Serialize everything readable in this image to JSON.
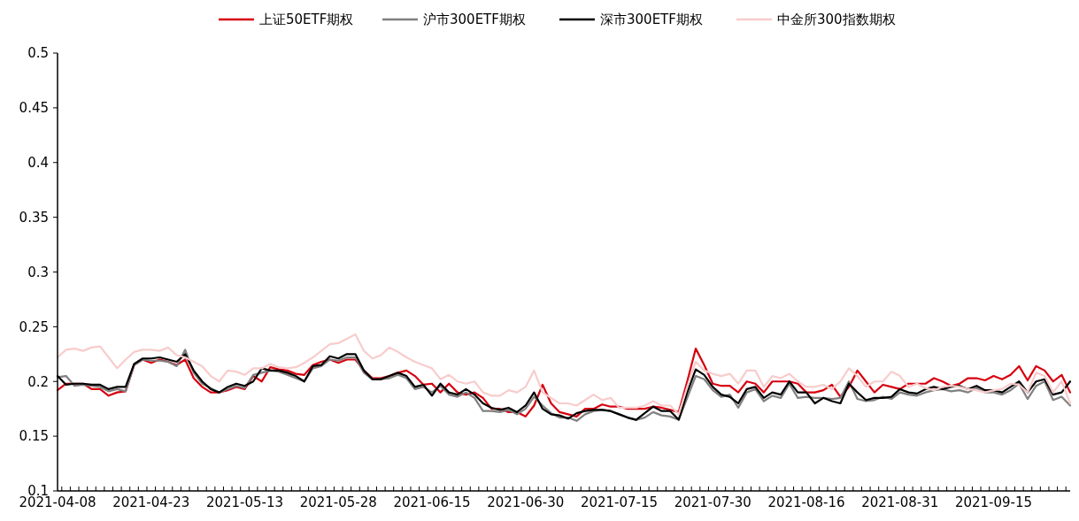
{
  "chart_data": {
    "type": "line",
    "legend": "top",
    "grid": false,
    "marker": "none",
    "line_style": "solid",
    "categories": [
      "2021-04-08",
      null,
      null,
      null,
      null,
      null,
      null,
      null,
      null,
      null,
      null,
      "2021-04-23",
      null,
      null,
      null,
      null,
      null,
      null,
      null,
      null,
      null,
      null,
      "2021-05-13",
      null,
      null,
      null,
      null,
      null,
      null,
      null,
      null,
      null,
      null,
      "2021-05-28",
      null,
      null,
      null,
      null,
      null,
      null,
      null,
      null,
      null,
      null,
      "2021-06-15",
      null,
      null,
      null,
      null,
      null,
      null,
      null,
      null,
      null,
      null,
      "2021-06-30",
      null,
      null,
      null,
      null,
      null,
      null,
      null,
      null,
      null,
      null,
      "2021-07-15",
      null,
      null,
      null,
      null,
      null,
      null,
      null,
      null,
      null,
      null,
      "2021-07-30",
      null,
      null,
      null,
      null,
      null,
      null,
      null,
      null,
      null,
      null,
      "2021-08-16",
      null,
      null,
      null,
      null,
      null,
      null,
      null,
      null,
      null,
      null,
      "2021-08-31",
      null,
      null,
      null,
      null,
      null,
      null,
      null,
      null,
      null,
      null,
      "2021-09-15",
      null,
      null,
      null,
      null,
      null,
      null,
      null,
      null,
      null
    ],
    "ylim": [
      0.1,
      0.5
    ],
    "yticks": [
      0.1,
      0.15,
      0.2,
      0.25,
      0.3,
      0.35,
      0.4,
      0.45,
      0.5
    ],
    "series": [
      {
        "name": "上证50ETF期权",
        "color": "#d7000f",
        "values": [
          0.192,
          0.198,
          0.198,
          0.198,
          0.193,
          0.193,
          0.187,
          0.19,
          0.191,
          0.215,
          0.22,
          0.217,
          0.22,
          0.218,
          0.215,
          0.22,
          0.203,
          0.195,
          0.19,
          0.19,
          0.192,
          0.195,
          0.193,
          0.205,
          0.2,
          0.213,
          0.211,
          0.21,
          0.207,
          0.206,
          0.215,
          0.218,
          0.22,
          0.217,
          0.22,
          0.22,
          0.21,
          0.203,
          0.203,
          0.205,
          0.208,
          0.21,
          0.205,
          0.197,
          0.198,
          0.19,
          0.198,
          0.19,
          0.188,
          0.19,
          0.185,
          0.175,
          0.175,
          0.172,
          0.172,
          0.168,
          0.178,
          0.197,
          0.18,
          0.172,
          0.17,
          0.168,
          0.175,
          0.175,
          0.179,
          0.177,
          0.177,
          0.175,
          0.175,
          0.175,
          0.177,
          0.176,
          0.174,
          0.172,
          0.2,
          0.23,
          0.215,
          0.198,
          0.196,
          0.196,
          0.19,
          0.2,
          0.198,
          0.19,
          0.2,
          0.2,
          0.2,
          0.198,
          0.19,
          0.19,
          0.192,
          0.197,
          0.186,
          0.195,
          0.21,
          0.2,
          0.19,
          0.197,
          0.195,
          0.193,
          0.198,
          0.198,
          0.198,
          0.203,
          0.2,
          0.196,
          0.198,
          0.203,
          0.203,
          0.201,
          0.205,
          0.202,
          0.206,
          0.214,
          0.201,
          0.214,
          0.21,
          0.2,
          0.206,
          0.19
        ]
      },
      {
        "name": "沪市300ETF期权",
        "color": "#808080",
        "values": [
          0.204,
          0.205,
          0.196,
          0.197,
          0.196,
          0.195,
          0.191,
          0.193,
          0.191,
          0.215,
          0.22,
          0.219,
          0.219,
          0.218,
          0.214,
          0.229,
          0.208,
          0.198,
          0.194,
          0.19,
          0.193,
          0.196,
          0.194,
          0.206,
          0.208,
          0.21,
          0.209,
          0.206,
          0.203,
          0.2,
          0.212,
          0.214,
          0.22,
          0.219,
          0.222,
          0.222,
          0.208,
          0.202,
          0.202,
          0.203,
          0.206,
          0.203,
          0.193,
          0.195,
          0.19,
          0.196,
          0.188,
          0.186,
          0.19,
          0.185,
          0.173,
          0.173,
          0.172,
          0.174,
          0.17,
          0.175,
          0.186,
          0.178,
          0.171,
          0.167,
          0.167,
          0.164,
          0.17,
          0.173,
          0.174,
          0.173,
          0.17,
          0.167,
          0.165,
          0.167,
          0.172,
          0.169,
          0.168,
          0.165,
          0.185,
          0.205,
          0.202,
          0.192,
          0.186,
          0.188,
          0.176,
          0.19,
          0.193,
          0.182,
          0.187,
          0.185,
          0.198,
          0.185,
          0.186,
          0.185,
          0.185,
          0.184,
          0.185,
          0.2,
          0.184,
          0.182,
          0.183,
          0.186,
          0.184,
          0.19,
          0.188,
          0.187,
          0.19,
          0.192,
          0.193,
          0.191,
          0.192,
          0.19,
          0.194,
          0.19,
          0.19,
          0.188,
          0.192,
          0.198,
          0.184,
          0.196,
          0.2,
          0.183,
          0.186,
          0.178
        ]
      },
      {
        "name": "深市300ETF期权",
        "color": "#000000",
        "values": [
          0.205,
          0.197,
          0.198,
          0.198,
          0.197,
          0.197,
          0.193,
          0.195,
          0.195,
          0.216,
          0.221,
          0.221,
          0.222,
          0.22,
          0.218,
          0.225,
          0.21,
          0.2,
          0.193,
          0.19,
          0.195,
          0.198,
          0.196,
          0.2,
          0.212,
          0.21,
          0.21,
          0.208,
          0.205,
          0.2,
          0.214,
          0.215,
          0.223,
          0.221,
          0.225,
          0.225,
          0.21,
          0.202,
          0.202,
          0.205,
          0.208,
          0.205,
          0.195,
          0.197,
          0.187,
          0.198,
          0.19,
          0.188,
          0.193,
          0.188,
          0.18,
          0.176,
          0.174,
          0.176,
          0.172,
          0.178,
          0.19,
          0.175,
          0.17,
          0.169,
          0.166,
          0.171,
          0.173,
          0.174,
          0.174,
          0.173,
          0.17,
          0.167,
          0.165,
          0.171,
          0.177,
          0.173,
          0.173,
          0.165,
          0.19,
          0.211,
          0.206,
          0.195,
          0.188,
          0.186,
          0.18,
          0.193,
          0.195,
          0.185,
          0.19,
          0.188,
          0.2,
          0.19,
          0.19,
          0.18,
          0.185,
          0.182,
          0.18,
          0.198,
          0.19,
          0.183,
          0.185,
          0.185,
          0.186,
          0.193,
          0.19,
          0.189,
          0.193,
          0.195,
          0.193,
          0.195,
          0.196,
          0.193,
          0.196,
          0.192,
          0.192,
          0.19,
          0.195,
          0.2,
          0.19,
          0.2,
          0.202,
          0.188,
          0.19,
          0.2
        ]
      },
      {
        "name": "中金所300指数期权",
        "color": "#f8cccc",
        "values": [
          0.222,
          0.229,
          0.23,
          0.228,
          0.231,
          0.232,
          0.222,
          0.212,
          0.22,
          0.227,
          0.229,
          0.229,
          0.228,
          0.231,
          0.224,
          0.222,
          0.218,
          0.214,
          0.205,
          0.2,
          0.21,
          0.209,
          0.206,
          0.212,
          0.212,
          0.216,
          0.213,
          0.212,
          0.213,
          0.217,
          0.222,
          0.228,
          0.234,
          0.235,
          0.239,
          0.243,
          0.228,
          0.221,
          0.224,
          0.231,
          0.227,
          0.222,
          0.218,
          0.215,
          0.212,
          0.202,
          0.206,
          0.2,
          0.198,
          0.2,
          0.19,
          0.187,
          0.187,
          0.192,
          0.19,
          0.195,
          0.21,
          0.19,
          0.185,
          0.18,
          0.18,
          0.178,
          0.183,
          0.188,
          0.183,
          0.185,
          0.176,
          0.176,
          0.176,
          0.178,
          0.182,
          0.178,
          0.178,
          0.17,
          0.195,
          0.218,
          0.21,
          0.207,
          0.205,
          0.207,
          0.198,
          0.21,
          0.21,
          0.195,
          0.205,
          0.203,
          0.207,
          0.2,
          0.195,
          0.195,
          0.197,
          0.193,
          0.2,
          0.212,
          0.205,
          0.195,
          0.2,
          0.2,
          0.209,
          0.205,
          0.195,
          0.198,
          0.194,
          0.192,
          0.195,
          0.196,
          0.195,
          0.193,
          0.192,
          0.19,
          0.192,
          0.193,
          0.198,
          0.197,
          0.19,
          0.208,
          0.205,
          0.19,
          0.2,
          0.18
        ]
      }
    ]
  }
}
